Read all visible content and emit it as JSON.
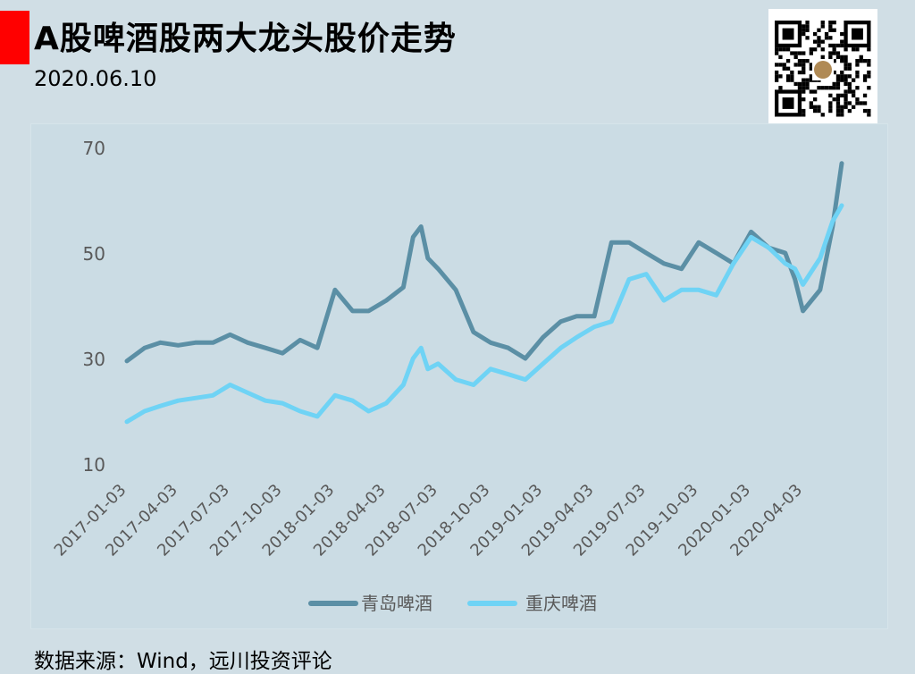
{
  "header": {
    "title": "A股啤酒股两大龙头股价走势",
    "date": "2020.06.10",
    "accent_color": "#ff0000"
  },
  "footer": {
    "source": "数据来源：Wind，远川投资评论"
  },
  "qr_icon": "qr-code-icon",
  "chart_data": {
    "type": "line",
    "title": "A股啤酒股两大龙头股价走势",
    "xlabel": "",
    "ylabel": "",
    "ylim": [
      10,
      70
    ],
    "yticks": [
      10,
      30,
      50,
      70
    ],
    "xtick_labels": [
      "2017-01-03",
      "2017-04-03",
      "2017-07-03",
      "2017-10-03",
      "2018-01-03",
      "2018-04-03",
      "2018-07-03",
      "2018-10-03",
      "2019-01-03",
      "2019-04-03",
      "2019-07-03",
      "2019-10-03",
      "2020-01-03",
      "2020-04-03"
    ],
    "grid": false,
    "legend_position": "bottom",
    "x": [
      "2017-01-03",
      "2017-02-03",
      "2017-03-03",
      "2017-04-03",
      "2017-05-03",
      "2017-06-03",
      "2017-07-03",
      "2017-08-03",
      "2017-09-03",
      "2017-10-03",
      "2017-11-03",
      "2017-12-03",
      "2018-01-03",
      "2018-02-03",
      "2018-03-03",
      "2018-04-03",
      "2018-05-03",
      "2018-05-20",
      "2018-06-03",
      "2018-06-15",
      "2018-07-03",
      "2018-08-03",
      "2018-09-03",
      "2018-10-03",
      "2018-11-03",
      "2018-12-03",
      "2019-01-03",
      "2019-02-03",
      "2019-03-03",
      "2019-04-03",
      "2019-05-03",
      "2019-06-03",
      "2019-07-03",
      "2019-08-03",
      "2019-09-03",
      "2019-10-03",
      "2019-11-03",
      "2019-12-03",
      "2020-01-03",
      "2020-02-03",
      "2020-03-03",
      "2020-03-20",
      "2020-04-03",
      "2020-05-03",
      "2020-05-25",
      "2020-06-10"
    ],
    "series": [
      {
        "name": "青岛啤酒",
        "color": "#5b8fa5",
        "values": [
          29.5,
          32,
          33,
          32.5,
          33,
          33,
          34.5,
          33,
          32,
          31,
          33.5,
          32,
          43,
          39,
          39,
          41,
          43.5,
          53,
          55,
          49,
          47,
          43,
          35,
          33,
          32,
          30,
          34,
          37,
          38,
          38,
          52,
          52,
          50,
          48,
          47,
          52,
          50,
          48,
          54,
          51,
          50,
          45,
          39,
          43,
          55,
          67
        ]
      },
      {
        "name": "重庆啤酒",
        "color": "#6fd3f5",
        "values": [
          18,
          20,
          21,
          22,
          22.5,
          23,
          25,
          23.5,
          22,
          21.5,
          20,
          19,
          23,
          22,
          20,
          21.5,
          25,
          30,
          32,
          28,
          29,
          26,
          25,
          28,
          27,
          26,
          29,
          32,
          34,
          36,
          37,
          45,
          46,
          41,
          43,
          43,
          42,
          48,
          53,
          51,
          48,
          47,
          44,
          49,
          56,
          59
        ]
      }
    ]
  }
}
